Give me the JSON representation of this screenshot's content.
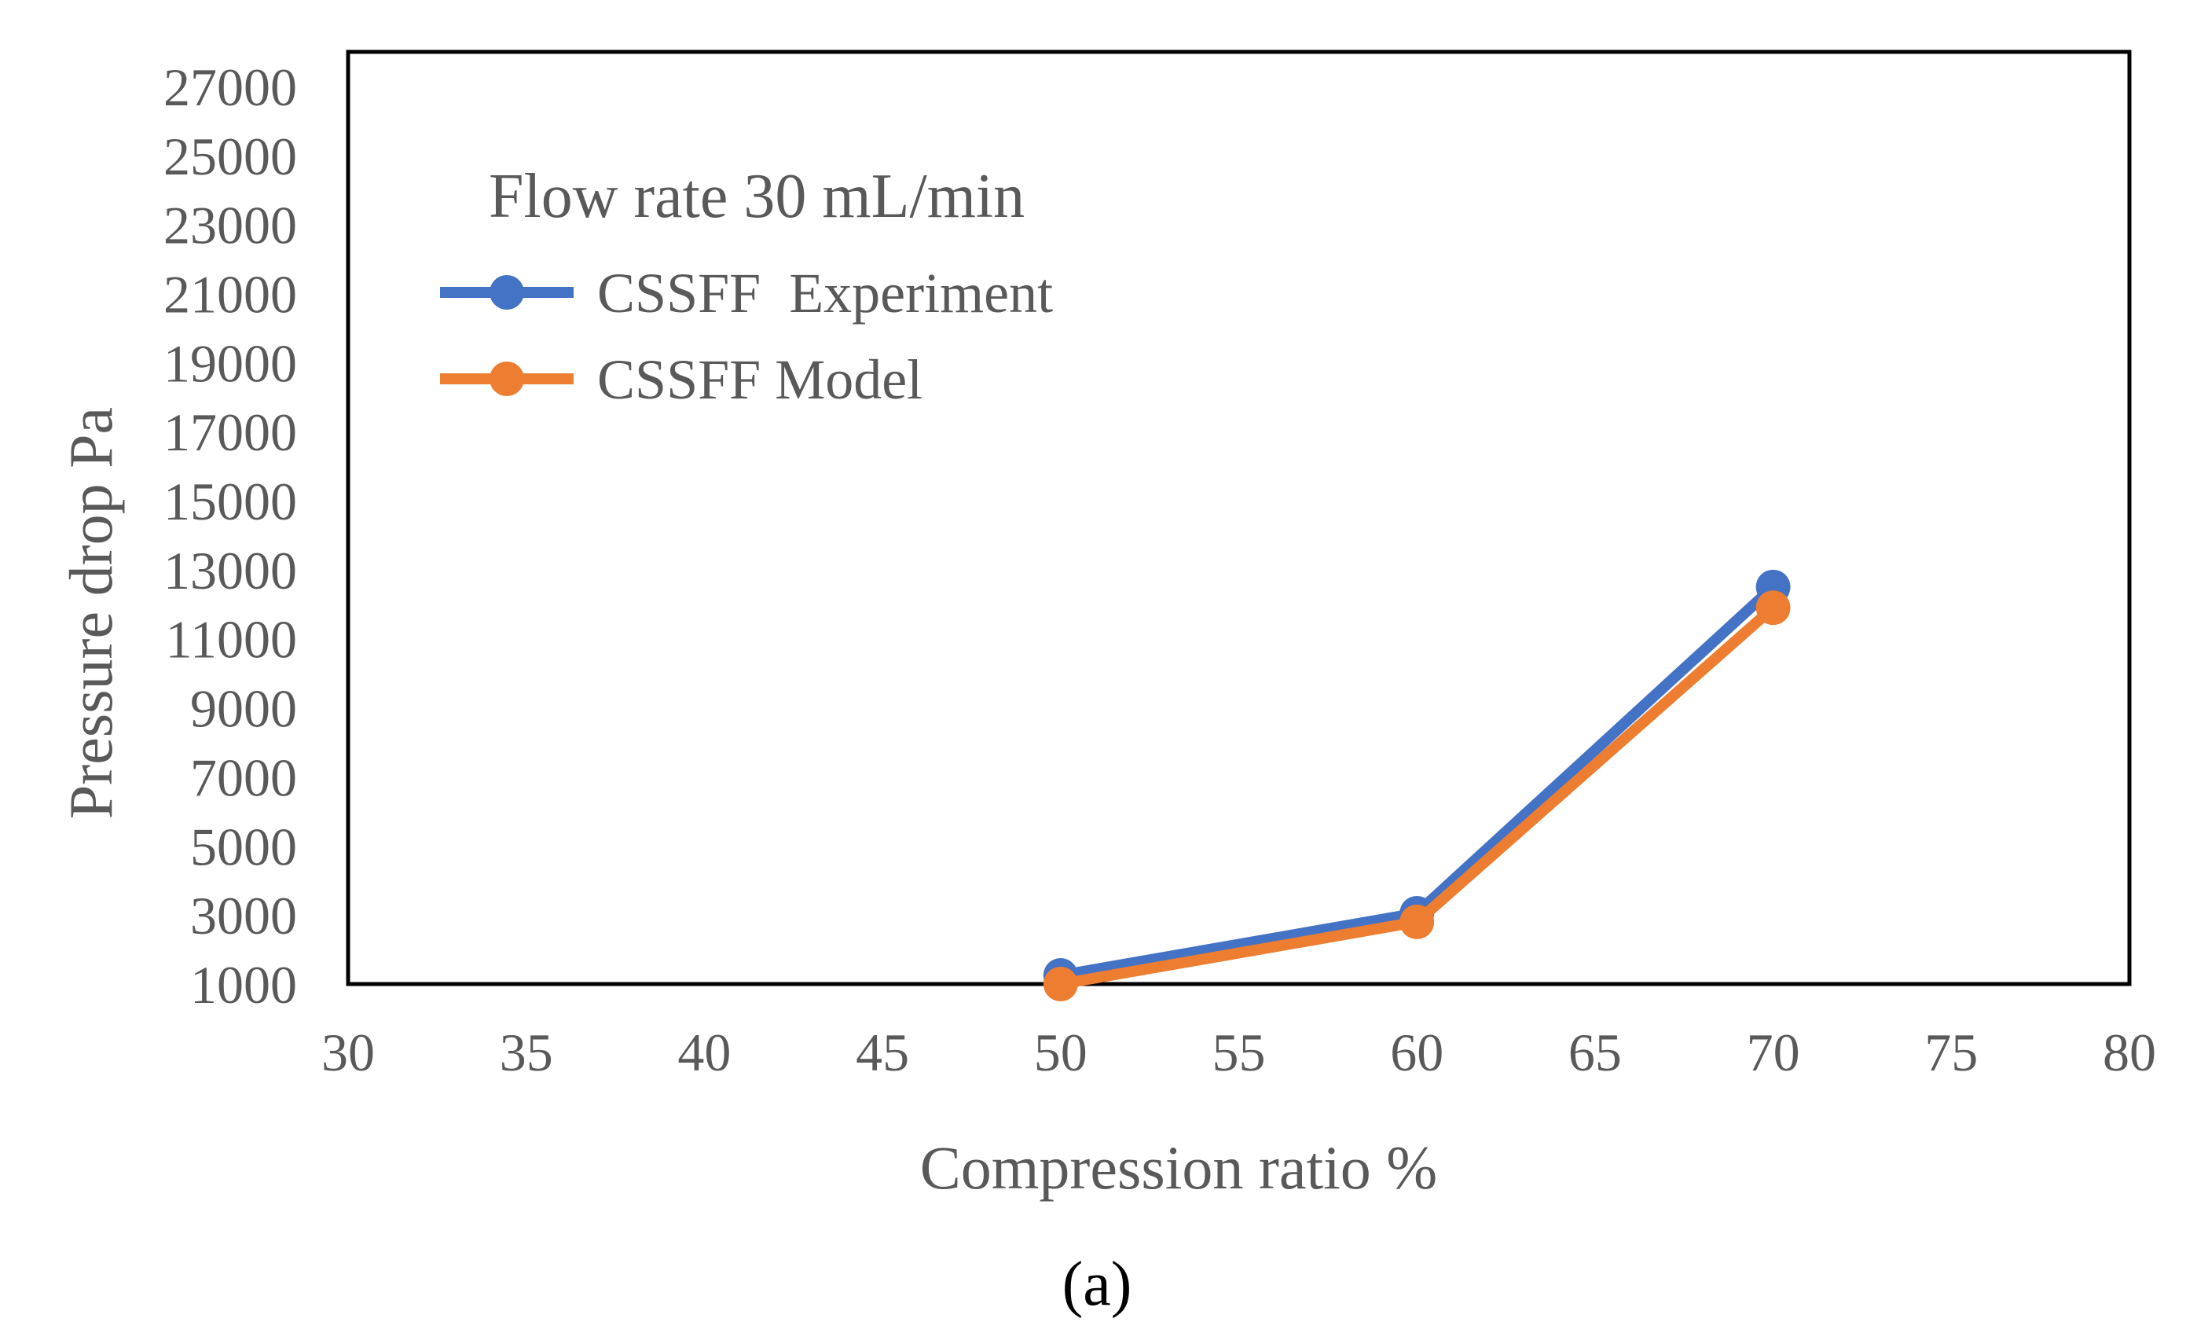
{
  "chart_data": {
    "type": "line",
    "title": "",
    "caption": "(a)",
    "xlabel": "Compression ratio %",
    "ylabel": "Pressure drop Pa",
    "xlim": [
      30,
      80
    ],
    "ylim": [
      1000,
      28000
    ],
    "x_ticks": [
      "30",
      "35",
      "40",
      "45",
      "50",
      "55",
      "60",
      "65",
      "70",
      "75",
      "80"
    ],
    "y_ticks": [
      "1000",
      "3000",
      "5000",
      "7000",
      "9000",
      "11000",
      "13000",
      "15000",
      "17000",
      "19000",
      "21000",
      "23000",
      "25000",
      "27000"
    ],
    "grid": false,
    "legend": {
      "title": "Flow rate 30 mL/min",
      "position": "top-left"
    },
    "series": [
      {
        "name": "CSSFF  Experiment",
        "color": "#4472C4",
        "x": [
          50,
          60,
          70
        ],
        "values": [
          1250,
          3050,
          12500
        ]
      },
      {
        "name": "CSSFF Model",
        "color": "#ED7D31",
        "x": [
          50,
          60,
          70
        ],
        "values": [
          1000,
          2800,
          11900
        ]
      }
    ]
  }
}
